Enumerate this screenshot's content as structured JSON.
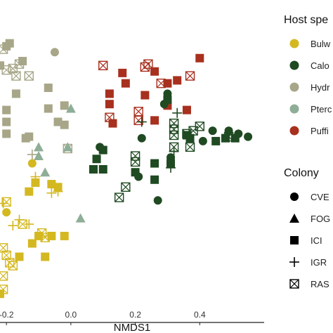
{
  "chart_data": {
    "type": "scatter",
    "xlabel": "NMDS1",
    "x_ticks": [
      "-0.2",
      "0.0",
      "0.2",
      "0.4"
    ],
    "x_tick_values": [
      -0.2,
      0.0,
      0.2,
      0.4
    ],
    "xlim": [
      -0.22,
      0.6
    ],
    "ylim": [
      0,
      1
    ],
    "legend_host_title": "Host spe",
    "legend_host": [
      {
        "key": "bulw",
        "label": "Bulw",
        "color": "#d4b820"
      },
      {
        "key": "calo",
        "label": "Calo",
        "color": "#1f4a22"
      },
      {
        "key": "hydr",
        "label": "Hydr",
        "color": "#a7a688"
      },
      {
        "key": "pter",
        "label": "Pterc",
        "color": "#8fae98"
      },
      {
        "key": "puff",
        "label": "Puffi",
        "color": "#a8301e"
      }
    ],
    "legend_colony_title": "Colony",
    "legend_colony": [
      {
        "shape": "circle",
        "label": "CVE"
      },
      {
        "shape": "triangle",
        "label": "FOG"
      },
      {
        "shape": "square",
        "label": "ICI"
      },
      {
        "shape": "plus",
        "label": "IGR"
      },
      {
        "shape": "boxx",
        "label": "RAS"
      }
    ],
    "points": [
      {
        "x": -0.2,
        "y": 0.915,
        "host": "hydr",
        "shape": "square"
      },
      {
        "x": -0.19,
        "y": 0.925,
        "host": "hydr",
        "shape": "square"
      },
      {
        "x": -0.21,
        "y": 0.905,
        "host": "hydr",
        "shape": "boxx"
      },
      {
        "x": -0.15,
        "y": 0.865,
        "host": "hydr",
        "shape": "square"
      },
      {
        "x": -0.16,
        "y": 0.855,
        "host": "hydr",
        "shape": "boxx"
      },
      {
        "x": -0.18,
        "y": 0.84,
        "host": "hydr",
        "shape": "boxx"
      },
      {
        "x": -0.2,
        "y": 0.835,
        "host": "hydr",
        "shape": "boxx"
      },
      {
        "x": -0.22,
        "y": 0.85,
        "host": "hydr",
        "shape": "square"
      },
      {
        "x": -0.17,
        "y": 0.815,
        "host": "hydr",
        "shape": "boxx"
      },
      {
        "x": -0.13,
        "y": 0.815,
        "host": "hydr",
        "shape": "boxx"
      },
      {
        "x": -0.05,
        "y": 0.895,
        "host": "hydr",
        "shape": "circle"
      },
      {
        "x": -0.07,
        "y": 0.775,
        "host": "hydr",
        "shape": "square"
      },
      {
        "x": -0.17,
        "y": 0.755,
        "host": "hydr",
        "shape": "square"
      },
      {
        "x": -0.07,
        "y": 0.705,
        "host": "hydr",
        "shape": "square"
      },
      {
        "x": -0.2,
        "y": 0.7,
        "host": "hydr",
        "shape": "square"
      },
      {
        "x": -0.02,
        "y": 0.715,
        "host": "hydr",
        "shape": "square"
      },
      {
        "x": -0.2,
        "y": 0.66,
        "host": "hydr",
        "shape": "square"
      },
      {
        "x": -0.04,
        "y": 0.66,
        "host": "hydr",
        "shape": "square"
      },
      {
        "x": -0.2,
        "y": 0.62,
        "host": "hydr",
        "shape": "square"
      },
      {
        "x": -0.13,
        "y": 0.61,
        "host": "hydr",
        "shape": "square"
      },
      {
        "x": -0.02,
        "y": 0.65,
        "host": "hydr",
        "shape": "square"
      },
      {
        "x": -0.14,
        "y": 0.605,
        "host": "hydr",
        "shape": "square"
      },
      {
        "x": -0.12,
        "y": 0.55,
        "host": "hydr",
        "shape": "plus"
      },
      {
        "x": -0.01,
        "y": 0.57,
        "host": "hydr",
        "shape": "boxx"
      },
      {
        "x": 0.0,
        "y": 0.705,
        "host": "pter",
        "shape": "triangle"
      },
      {
        "x": -0.1,
        "y": 0.575,
        "host": "pter",
        "shape": "triangle"
      },
      {
        "x": -0.1,
        "y": 0.545,
        "host": "pter",
        "shape": "triangle"
      },
      {
        "x": -0.01,
        "y": 0.575,
        "host": "pter",
        "shape": "triangle"
      },
      {
        "x": -0.08,
        "y": 0.49,
        "host": "pter",
        "shape": "triangle"
      },
      {
        "x": 0.03,
        "y": 0.335,
        "host": "pter",
        "shape": "triangle"
      },
      {
        "x": -0.12,
        "y": 0.52,
        "host": "bulw",
        "shape": "circle"
      },
      {
        "x": -0.11,
        "y": 0.475,
        "host": "bulw",
        "shape": "plus"
      },
      {
        "x": -0.11,
        "y": 0.455,
        "host": "bulw",
        "shape": "square"
      },
      {
        "x": -0.06,
        "y": 0.45,
        "host": "bulw",
        "shape": "square"
      },
      {
        "x": -0.04,
        "y": 0.44,
        "host": "bulw",
        "shape": "square"
      },
      {
        "x": -0.04,
        "y": 0.425,
        "host": "bulw",
        "shape": "plus"
      },
      {
        "x": -0.06,
        "y": 0.42,
        "host": "bulw",
        "shape": "plus"
      },
      {
        "x": -0.13,
        "y": 0.425,
        "host": "bulw",
        "shape": "square"
      },
      {
        "x": -0.2,
        "y": 0.39,
        "host": "bulw",
        "shape": "boxx"
      },
      {
        "x": -0.21,
        "y": 0.385,
        "host": "bulw",
        "shape": "plus"
      },
      {
        "x": -0.2,
        "y": 0.355,
        "host": "bulw",
        "shape": "circle"
      },
      {
        "x": -0.16,
        "y": 0.33,
        "host": "bulw",
        "shape": "plus"
      },
      {
        "x": -0.15,
        "y": 0.315,
        "host": "bulw",
        "shape": "boxx"
      },
      {
        "x": -0.13,
        "y": 0.315,
        "host": "bulw",
        "shape": "plus"
      },
      {
        "x": -0.18,
        "y": 0.31,
        "host": "bulw",
        "shape": "plus"
      },
      {
        "x": -0.09,
        "y": 0.285,
        "host": "bulw",
        "shape": "boxx"
      },
      {
        "x": -0.08,
        "y": 0.27,
        "host": "bulw",
        "shape": "boxx"
      },
      {
        "x": -0.1,
        "y": 0.275,
        "host": "bulw",
        "shape": "square"
      },
      {
        "x": -0.06,
        "y": 0.275,
        "host": "bulw",
        "shape": "square"
      },
      {
        "x": -0.02,
        "y": 0.275,
        "host": "bulw",
        "shape": "square"
      },
      {
        "x": -0.12,
        "y": 0.25,
        "host": "bulw",
        "shape": "square"
      },
      {
        "x": -0.21,
        "y": 0.235,
        "host": "bulw",
        "shape": "boxx"
      },
      {
        "x": -0.2,
        "y": 0.21,
        "host": "bulw",
        "shape": "boxx"
      },
      {
        "x": -0.16,
        "y": 0.205,
        "host": "bulw",
        "shape": "square"
      },
      {
        "x": -0.08,
        "y": 0.205,
        "host": "bulw",
        "shape": "square"
      },
      {
        "x": -0.19,
        "y": 0.185,
        "host": "bulw",
        "shape": "boxx"
      },
      {
        "x": -0.18,
        "y": 0.175,
        "host": "bulw",
        "shape": "boxx"
      },
      {
        "x": -0.21,
        "y": 0.14,
        "host": "bulw",
        "shape": "boxx"
      },
      {
        "x": -0.21,
        "y": 0.095,
        "host": "bulw",
        "shape": "boxx"
      },
      {
        "x": -0.22,
        "y": 0.08,
        "host": "bulw",
        "shape": "square"
      },
      {
        "x": 0.1,
        "y": 0.85,
        "host": "puff",
        "shape": "boxx"
      },
      {
        "x": 0.16,
        "y": 0.825,
        "host": "puff",
        "shape": "square"
      },
      {
        "x": 0.24,
        "y": 0.855,
        "host": "puff",
        "shape": "boxx"
      },
      {
        "x": 0.23,
        "y": 0.845,
        "host": "puff",
        "shape": "boxx"
      },
      {
        "x": 0.26,
        "y": 0.83,
        "host": "puff",
        "shape": "square"
      },
      {
        "x": 0.4,
        "y": 0.875,
        "host": "puff",
        "shape": "square"
      },
      {
        "x": 0.37,
        "y": 0.815,
        "host": "puff",
        "shape": "boxx"
      },
      {
        "x": 0.17,
        "y": 0.79,
        "host": "puff",
        "shape": "square"
      },
      {
        "x": 0.28,
        "y": 0.79,
        "host": "puff",
        "shape": "boxx"
      },
      {
        "x": 0.3,
        "y": 0.79,
        "host": "puff",
        "shape": "square"
      },
      {
        "x": 0.33,
        "y": 0.8,
        "host": "puff",
        "shape": "square"
      },
      {
        "x": 0.12,
        "y": 0.755,
        "host": "puff",
        "shape": "square"
      },
      {
        "x": 0.23,
        "y": 0.75,
        "host": "puff",
        "shape": "square"
      },
      {
        "x": 0.12,
        "y": 0.72,
        "host": "puff",
        "shape": "square"
      },
      {
        "x": 0.21,
        "y": 0.695,
        "host": "puff",
        "shape": "boxx"
      },
      {
        "x": 0.3,
        "y": 0.715,
        "host": "puff",
        "shape": "square"
      },
      {
        "x": 0.36,
        "y": 0.7,
        "host": "puff",
        "shape": "square"
      },
      {
        "x": 0.12,
        "y": 0.675,
        "host": "puff",
        "shape": "boxx"
      },
      {
        "x": 0.21,
        "y": 0.665,
        "host": "puff",
        "shape": "boxx"
      },
      {
        "x": 0.13,
        "y": 0.655,
        "host": "puff",
        "shape": "square"
      },
      {
        "x": 0.26,
        "y": 0.665,
        "host": "puff",
        "shape": "square"
      },
      {
        "x": 0.3,
        "y": 0.755,
        "host": "calo",
        "shape": "circle"
      },
      {
        "x": 0.3,
        "y": 0.735,
        "host": "calo",
        "shape": "square"
      },
      {
        "x": 0.29,
        "y": 0.72,
        "host": "calo",
        "shape": "circle"
      },
      {
        "x": 0.33,
        "y": 0.69,
        "host": "calo",
        "shape": "plus"
      },
      {
        "x": 0.22,
        "y": 0.66,
        "host": "calo",
        "shape": "plus"
      },
      {
        "x": 0.32,
        "y": 0.655,
        "host": "calo",
        "shape": "boxx"
      },
      {
        "x": 0.32,
        "y": 0.635,
        "host": "calo",
        "shape": "boxx"
      },
      {
        "x": 0.32,
        "y": 0.615,
        "host": "calo",
        "shape": "boxx"
      },
      {
        "x": 0.36,
        "y": 0.62,
        "host": "calo",
        "shape": "boxx"
      },
      {
        "x": 0.38,
        "y": 0.63,
        "host": "calo",
        "shape": "boxx"
      },
      {
        "x": 0.4,
        "y": 0.645,
        "host": "calo",
        "shape": "boxx"
      },
      {
        "x": 0.36,
        "y": 0.615,
        "host": "calo",
        "shape": "square"
      },
      {
        "x": 0.37,
        "y": 0.605,
        "host": "calo",
        "shape": "square"
      },
      {
        "x": 0.44,
        "y": 0.63,
        "host": "calo",
        "shape": "circle"
      },
      {
        "x": 0.49,
        "y": 0.63,
        "host": "calo",
        "shape": "circle"
      },
      {
        "x": 0.52,
        "y": 0.62,
        "host": "calo",
        "shape": "circle"
      },
      {
        "x": 0.55,
        "y": 0.61,
        "host": "calo",
        "shape": "circle"
      },
      {
        "x": 0.48,
        "y": 0.605,
        "host": "calo",
        "shape": "square"
      },
      {
        "x": 0.51,
        "y": 0.605,
        "host": "calo",
        "shape": "square"
      },
      {
        "x": 0.49,
        "y": 0.61,
        "host": "calo",
        "shape": "boxx"
      },
      {
        "x": 0.45,
        "y": 0.595,
        "host": "calo",
        "shape": "square"
      },
      {
        "x": 0.41,
        "y": 0.595,
        "host": "calo",
        "shape": "circle"
      },
      {
        "x": 0.37,
        "y": 0.575,
        "host": "calo",
        "shape": "boxx"
      },
      {
        "x": 0.32,
        "y": 0.575,
        "host": "calo",
        "shape": "boxx"
      },
      {
        "x": 0.32,
        "y": 0.56,
        "host": "calo",
        "shape": "plus"
      },
      {
        "x": 0.31,
        "y": 0.54,
        "host": "calo",
        "shape": "circle"
      },
      {
        "x": 0.31,
        "y": 0.52,
        "host": "calo",
        "shape": "square"
      },
      {
        "x": 0.31,
        "y": 0.505,
        "host": "calo",
        "shape": "plus"
      },
      {
        "x": 0.22,
        "y": 0.605,
        "host": "calo",
        "shape": "circle"
      },
      {
        "x": 0.09,
        "y": 0.575,
        "host": "calo",
        "shape": "circle"
      },
      {
        "x": 0.1,
        "y": 0.565,
        "host": "calo",
        "shape": "square"
      },
      {
        "x": 0.2,
        "y": 0.545,
        "host": "calo",
        "shape": "boxx"
      },
      {
        "x": 0.2,
        "y": 0.525,
        "host": "calo",
        "shape": "boxx"
      },
      {
        "x": 0.08,
        "y": 0.535,
        "host": "calo",
        "shape": "square"
      },
      {
        "x": 0.26,
        "y": 0.52,
        "host": "calo",
        "shape": "square"
      },
      {
        "x": 0.07,
        "y": 0.5,
        "host": "calo",
        "shape": "square"
      },
      {
        "x": 0.1,
        "y": 0.5,
        "host": "calo",
        "shape": "square"
      },
      {
        "x": 0.2,
        "y": 0.49,
        "host": "calo",
        "shape": "square"
      },
      {
        "x": 0.21,
        "y": 0.475,
        "host": "calo",
        "shape": "circle"
      },
      {
        "x": 0.26,
        "y": 0.465,
        "host": "calo",
        "shape": "square"
      },
      {
        "x": 0.17,
        "y": 0.44,
        "host": "calo",
        "shape": "boxx"
      },
      {
        "x": 0.15,
        "y": 0.405,
        "host": "calo",
        "shape": "boxx"
      },
      {
        "x": 0.27,
        "y": 0.395,
        "host": "calo",
        "shape": "circle"
      }
    ]
  }
}
